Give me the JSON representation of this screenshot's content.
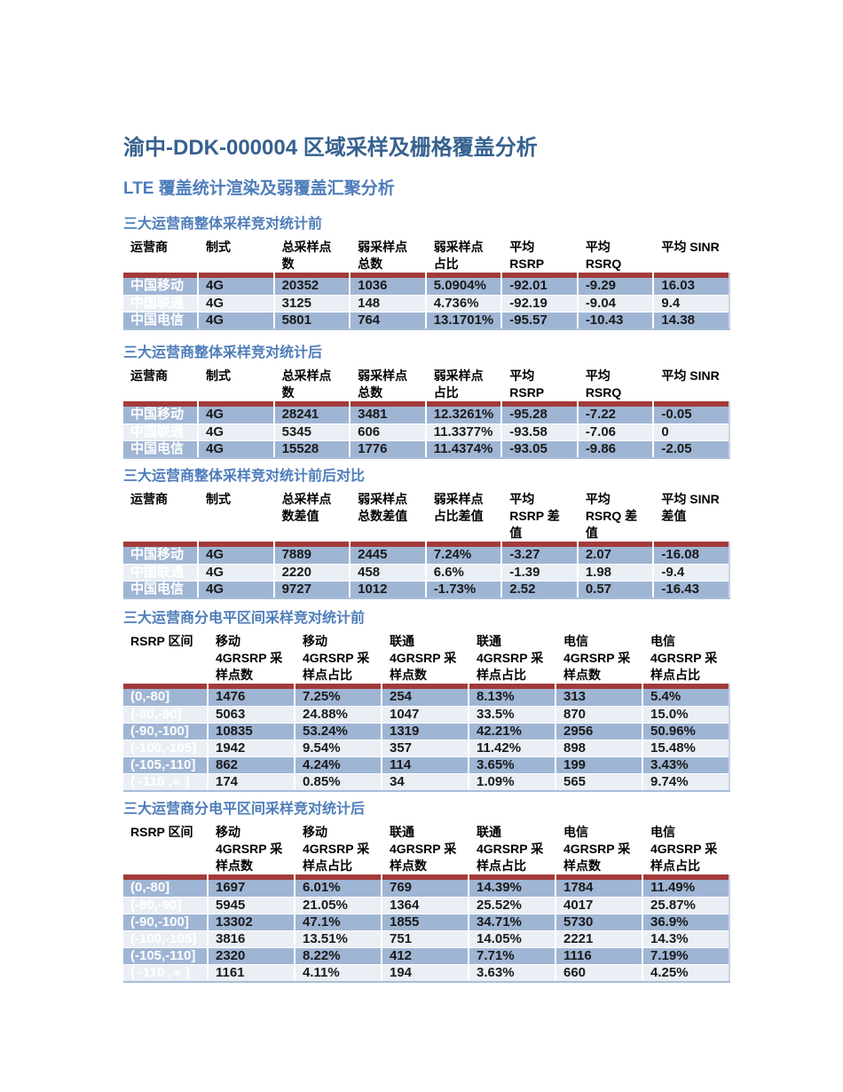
{
  "page": {
    "title": "渝中-DDK-000004 区域采样及栅格覆盖分析",
    "subtitle": "LTE 覆盖统计渲染及弱覆盖汇聚分析"
  },
  "colors": {
    "title": "#36618F",
    "section_title": "#4E7DBA",
    "red_divider": "#A33B3A",
    "row_label_bg": "#26486D",
    "stripe_dark": "#9FB5D4",
    "stripe_light": "#EAEFF5"
  },
  "tables": [
    {
      "title": "三大运营商整体采样竞对统计前",
      "kind": "operators",
      "headers": [
        [
          "运营商"
        ],
        [
          "制式"
        ],
        [
          "总采样点",
          "数"
        ],
        [
          "弱采样点",
          "总数"
        ],
        [
          "弱采样点",
          "占比"
        ],
        [
          "平均",
          "RSRP"
        ],
        [
          "平均",
          "RSRQ"
        ],
        [
          "平均 SINR"
        ]
      ],
      "rows": [
        [
          "中国移动",
          "4G",
          "20352",
          "1036",
          "5.0904%",
          "-92.01",
          "-9.29",
          "16.03"
        ],
        [
          "中国联通",
          "4G",
          "3125",
          "148",
          "4.736%",
          "-92.19",
          "-9.04",
          "9.4"
        ],
        [
          "中国电信",
          "4G",
          "5801",
          "764",
          "13.1701%",
          "-95.57",
          "-10.43",
          "14.38"
        ]
      ]
    },
    {
      "title": "三大运营商整体采样竞对统计后",
      "kind": "operators",
      "headers": [
        [
          "运营商"
        ],
        [
          "制式"
        ],
        [
          "总采样点",
          "数"
        ],
        [
          "弱采样点",
          "总数"
        ],
        [
          "弱采样点",
          "占比"
        ],
        [
          "平均",
          "RSRP"
        ],
        [
          "平均",
          "RSRQ"
        ],
        [
          "平均 SINR"
        ]
      ],
      "rows": [
        [
          "中国移动",
          "4G",
          "28241",
          "3481",
          "12.3261%",
          "-95.28",
          "-7.22",
          "-0.05"
        ],
        [
          "中国联通",
          "4G",
          "5345",
          "606",
          "11.3377%",
          "-93.58",
          "-7.06",
          "0"
        ],
        [
          "中国电信",
          "4G",
          "15528",
          "1776",
          "11.4374%",
          "-93.05",
          "-9.86",
          "-2.05"
        ]
      ]
    },
    {
      "title": "三大运营商整体采样竞对统计前后对比",
      "kind": "operators",
      "headers": [
        [
          "运营商"
        ],
        [
          "制式"
        ],
        [
          "总采样点",
          "数差值"
        ],
        [
          "弱采样点",
          "总数差值"
        ],
        [
          "弱采样点",
          "占比差值"
        ],
        [
          "平均",
          "RSRP 差",
          "值"
        ],
        [
          "平均",
          "RSRQ 差",
          "值"
        ],
        [
          "平均 SINR",
          "差值"
        ]
      ],
      "rows": [
        [
          "中国移动",
          "4G",
          "7889",
          "2445",
          "7.24%",
          "-3.27",
          "2.07",
          "-16.08"
        ],
        [
          "中国联通",
          "4G",
          "2220",
          "458",
          "6.6%",
          "-1.39",
          "1.98",
          "-9.4"
        ],
        [
          "中国电信",
          "4G",
          "9727",
          "1012",
          "-1.73%",
          "2.52",
          "0.57",
          "-16.43"
        ]
      ]
    },
    {
      "title": "三大运营商分电平区间采样竞对统计前",
      "kind": "rsrp",
      "headers": [
        [
          "RSRP 区间"
        ],
        [
          "移动",
          "4GRSRP 采",
          "样点数"
        ],
        [
          "移动",
          "4GRSRP 采",
          "样点占比"
        ],
        [
          "联通",
          "4GRSRP 采",
          "样点数"
        ],
        [
          "联通",
          "4GRSRP 采",
          "样点占比"
        ],
        [
          "电信",
          "4GRSRP 采",
          "样点数"
        ],
        [
          "电信",
          "4GRSRP 采",
          "样点占比"
        ]
      ],
      "rows": [
        [
          "(0,-80]",
          "1476",
          "7.25%",
          "254",
          "8.13%",
          "313",
          "5.4%"
        ],
        [
          "(-80,-90]",
          "5063",
          "24.88%",
          "1047",
          "33.5%",
          "870",
          "15.0%"
        ],
        [
          "(-90,-100]",
          "10835",
          "53.24%",
          "1319",
          "42.21%",
          "2956",
          "50.96%"
        ],
        [
          "(-100,-105]",
          "1942",
          "9.54%",
          "357",
          "11.42%",
          "898",
          "15.48%"
        ],
        [
          "(-105,-110]",
          "862",
          "4.24%",
          "114",
          "3.65%",
          "199",
          "3.43%"
        ],
        [
          "( -110 ,∝  ]",
          "174",
          "0.85%",
          "34",
          "1.09%",
          "565",
          "9.74%"
        ]
      ]
    },
    {
      "title": "三大运营商分电平区间采样竞对统计后",
      "kind": "rsrp",
      "headers": [
        [
          "RSRP 区间"
        ],
        [
          "移动",
          "4GRSRP 采",
          "样点数"
        ],
        [
          "移动",
          "4GRSRP 采",
          "样点占比"
        ],
        [
          "联通",
          "4GRSRP 采",
          "样点数"
        ],
        [
          "联通",
          "4GRSRP 采",
          "样点占比"
        ],
        [
          "电信",
          "4GRSRP 采",
          "样点数"
        ],
        [
          "电信",
          "4GRSRP 采",
          "样点占比"
        ]
      ],
      "rows": [
        [
          "(0,-80]",
          "1697",
          "6.01%",
          "769",
          "14.39%",
          "1784",
          "11.49%"
        ],
        [
          "(-80,-90]",
          "5945",
          "21.05%",
          "1364",
          "25.52%",
          "4017",
          "25.87%"
        ],
        [
          "(-90,-100]",
          "13302",
          "47.1%",
          "1855",
          "34.71%",
          "5730",
          "36.9%"
        ],
        [
          "(-100,-105]",
          "3816",
          "13.51%",
          "751",
          "14.05%",
          "2221",
          "14.3%"
        ],
        [
          "(-105,-110]",
          "2320",
          "8.22%",
          "412",
          "7.71%",
          "1116",
          "7.19%"
        ],
        [
          "( -110 ,∝  ]",
          "1161",
          "4.11%",
          "194",
          "3.63%",
          "660",
          "4.25%"
        ]
      ]
    }
  ]
}
